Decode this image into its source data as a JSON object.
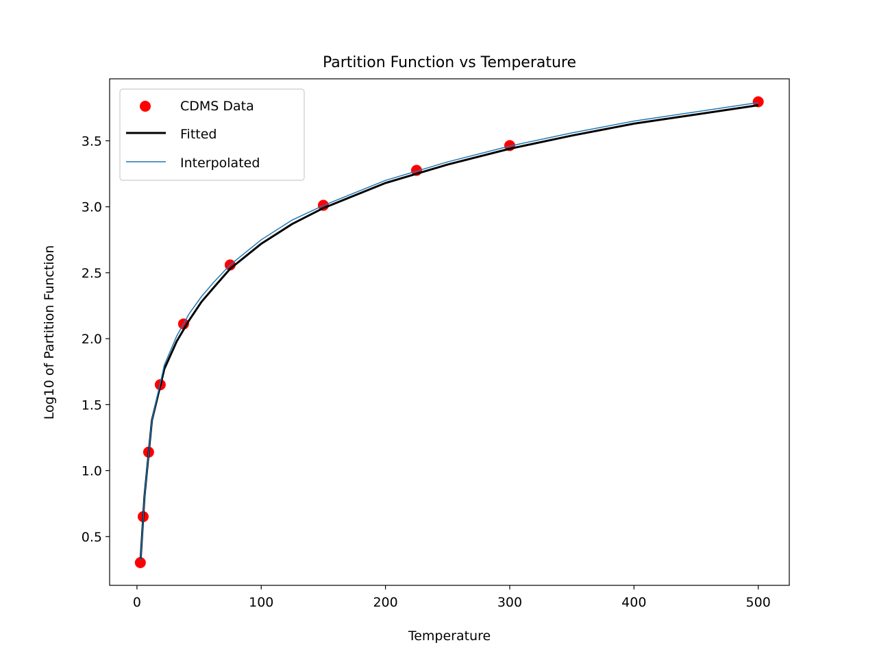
{
  "chart_data": {
    "type": "line",
    "title": "Partition Function vs Temperature",
    "xlabel": "Temperature",
    "ylabel": "Log10 of Partition Function",
    "xlim": [
      -22,
      525
    ],
    "ylim": [
      0.13,
      3.97
    ],
    "xticks": [
      0,
      100,
      200,
      300,
      400,
      500
    ],
    "xtick_labels": [
      "0",
      "100",
      "200",
      "300",
      "400",
      "500"
    ],
    "yticks": [
      0.5,
      1.0,
      1.5,
      2.0,
      2.5,
      3.0,
      3.5
    ],
    "ytick_labels": [
      "0.5",
      "1.0",
      "1.5",
      "2.0",
      "2.5",
      "3.0",
      "3.5"
    ],
    "grid": false,
    "legend_position": "top-left",
    "series": [
      {
        "name": "CDMS Data",
        "kind": "scatter",
        "color": "#ff0000",
        "x": [
          2.725,
          5,
          9.375,
          18.75,
          37.5,
          75,
          150,
          225,
          300,
          500
        ],
        "y": [
          0.302,
          0.651,
          1.14,
          1.651,
          2.112,
          2.559,
          3.011,
          3.276,
          3.464,
          3.796
        ]
      },
      {
        "name": "Fitted",
        "kind": "line",
        "color": "#000000",
        "x": [
          3,
          6,
          12,
          22,
          32,
          42,
          52,
          62,
          75,
          100,
          125,
          150,
          200,
          250,
          300,
          350,
          400,
          450,
          500
        ],
        "y": [
          0.33,
          0.8,
          1.38,
          1.77,
          1.98,
          2.14,
          2.28,
          2.39,
          2.53,
          2.72,
          2.87,
          2.99,
          3.18,
          3.32,
          3.44,
          3.54,
          3.63,
          3.7,
          3.77
        ]
      },
      {
        "name": "Interpolated",
        "kind": "line",
        "color": "#1f77b4",
        "x": [
          3,
          6,
          12,
          22,
          32,
          42,
          52,
          62,
          75,
          100,
          125,
          150,
          200,
          250,
          300,
          350,
          400,
          450,
          500
        ],
        "y": [
          0.32,
          0.8,
          1.38,
          1.8,
          2.02,
          2.19,
          2.32,
          2.43,
          2.56,
          2.75,
          2.9,
          3.01,
          3.2,
          3.34,
          3.46,
          3.56,
          3.65,
          3.72,
          3.79
        ]
      }
    ]
  }
}
